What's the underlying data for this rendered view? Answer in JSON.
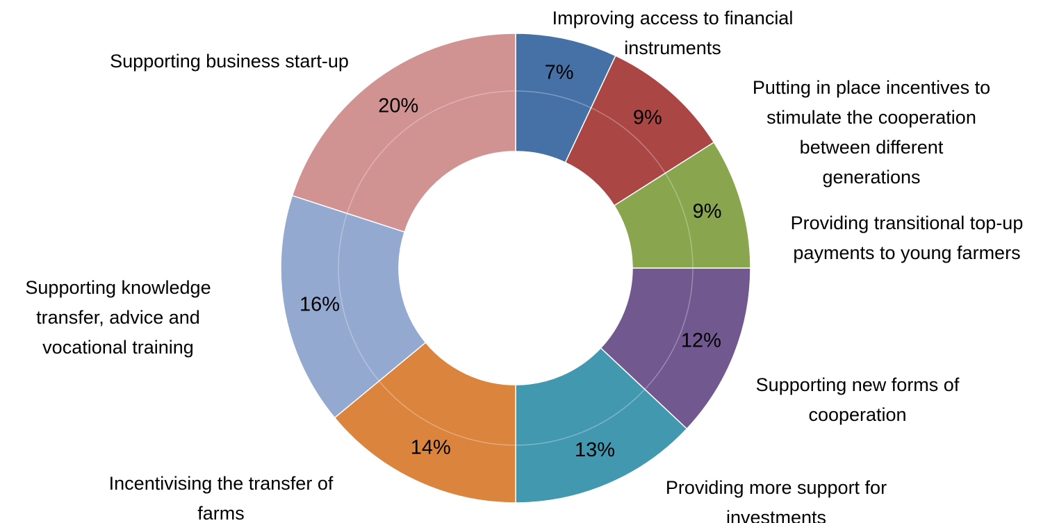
{
  "chart_data": {
    "type": "donut",
    "categories": [
      "Improving access to financial\ninstruments",
      "Putting in place incentives to\nstimulate the cooperation\nbetween different\ngenerations",
      "Providing transitional top-up\npayments to young farmers",
      "Supporting new forms of\ncooperation",
      "Providing more support for\ninvestments",
      "Incentivising the transfer of\nfarms",
      "Supporting knowledge\ntransfer, advice and\nvocational training",
      "Supporting business start-up"
    ],
    "values": [
      7,
      9,
      9,
      12,
      13,
      14,
      16,
      20
    ],
    "value_labels": [
      "7%",
      "9%",
      "9%",
      "12%",
      "13%",
      "14%",
      "16%",
      "20%"
    ],
    "colors": [
      "#4571a6",
      "#aa4644",
      "#89a54e",
      "#71588f",
      "#4198af",
      "#db843d",
      "#93a9cf",
      "#d19392"
    ]
  }
}
